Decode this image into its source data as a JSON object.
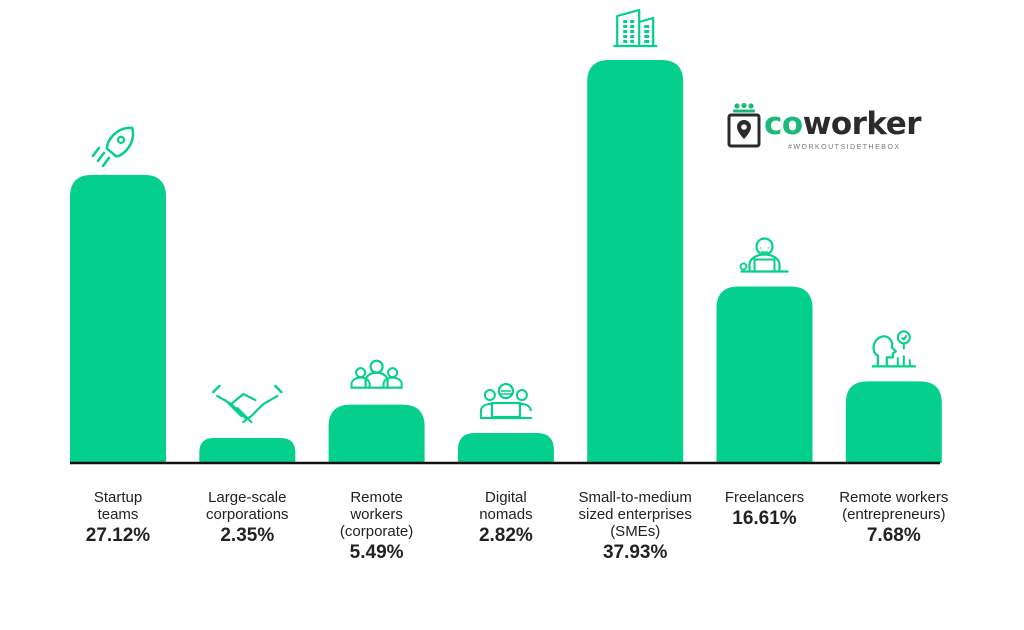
{
  "brand": {
    "name_prefix": "co",
    "name_suffix": "worker",
    "tagline": "#WORKOUTSIDETHEBOX",
    "accent_color": "#1cb97a",
    "text_color": "#2b2b2b"
  },
  "chart_data": {
    "type": "bar",
    "bar_color": "#04cf8c",
    "grid": false,
    "ylim": [
      0,
      40
    ],
    "categories": [
      "Startup\nteams",
      "Large-scale\ncorporations",
      "Remote\nworkers\n(corporate)",
      "Digital\nnomads",
      "Small-to-medium\nsized enterprises\n(SMEs)",
      "Freelancers",
      "Remote workers\n(entrepreneurs)"
    ],
    "values": [
      27.12,
      2.35,
      5.49,
      2.82,
      37.93,
      16.61,
      7.68
    ],
    "value_labels": [
      "27.12%",
      "2.35%",
      "5.49%",
      "2.82%",
      "37.93%",
      "16.61%",
      "7.68%"
    ],
    "icons": [
      "rocket-icon",
      "handshake-icon",
      "team-icon",
      "laptop-users-icon",
      "building-icon",
      "freelancer-icon",
      "entrepreneur-icon"
    ]
  }
}
